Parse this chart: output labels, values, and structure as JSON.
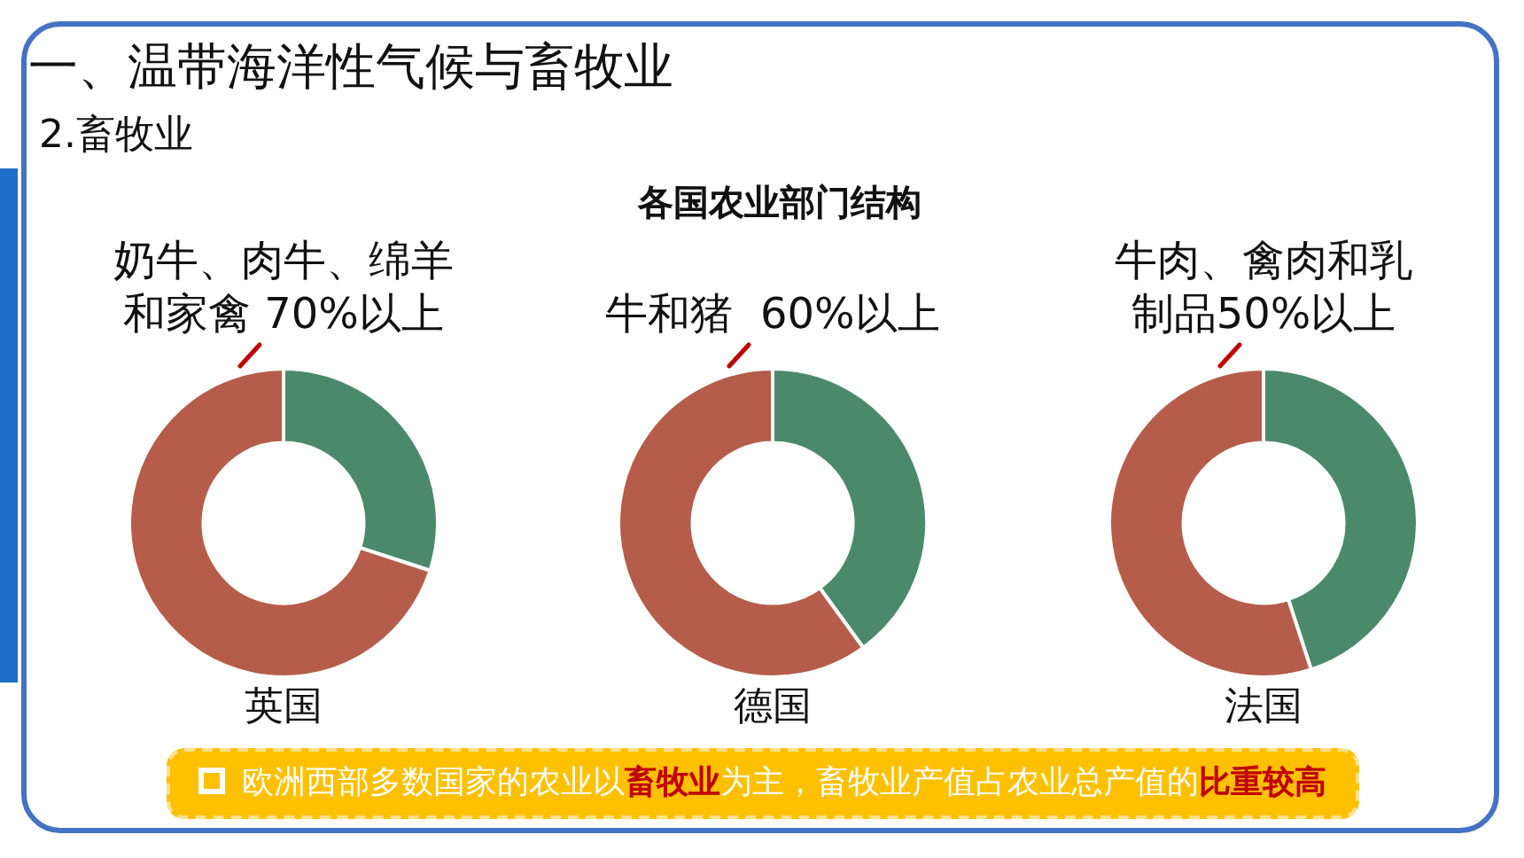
{
  "chart_data": [
    {
      "type": "other",
      "title": "一、温带海洋性气候与畜牧业",
      "subtitle": "2.畜牧业",
      "annotations": [
        "各国农业部门结构"
      ]
    },
    {
      "type": "donut",
      "title": "英国",
      "categories": [
        null,
        null
      ],
      "values": [
        30,
        70
      ],
      "colors": [
        "#4a8a6a",
        "#b55d4a"
      ],
      "annotations": [
        "奶牛、肉牛、绵羊和家禽 70%以上"
      ]
    },
    {
      "type": "donut",
      "title": "德国",
      "categories": [
        null,
        null
      ],
      "values": [
        40,
        60
      ],
      "colors": [
        "#4a8a6a",
        "#b55d4a"
      ],
      "annotations": [
        "牛和猪  60%以上"
      ]
    },
    {
      "type": "donut",
      "title": "法国",
      "categories": [
        null,
        null
      ],
      "values": [
        45,
        55
      ],
      "colors": [
        "#4a8a6a",
        "#b55d4a"
      ],
      "annotations": [
        "牛肉、禽肉和乳制品50%以上"
      ]
    },
    {
      "type": "other",
      "annotations": [
        "欧洲西部多数国家的农业以",
        "畜牧业",
        "为主，畜牧业产值占农业总产值的",
        "比重较高"
      ]
    }
  ]
}
